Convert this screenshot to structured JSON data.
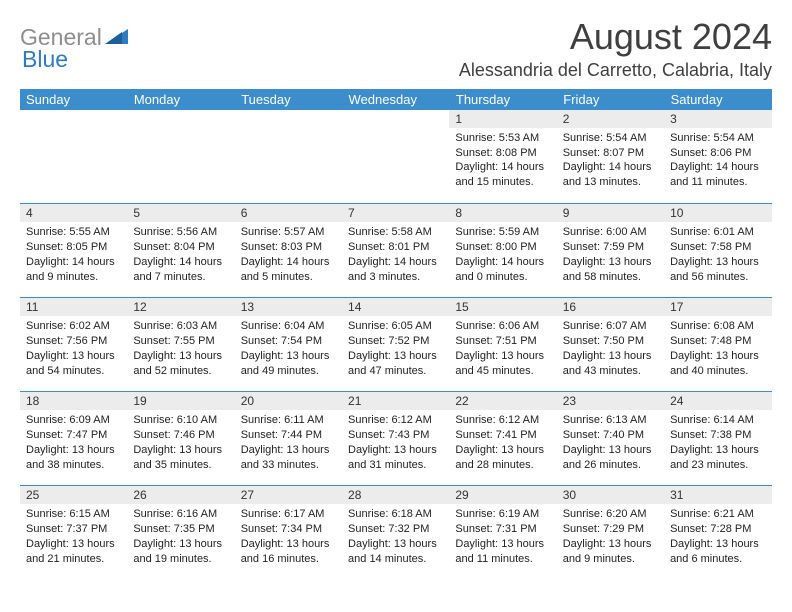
{
  "brand": {
    "general": "General",
    "blue": "Blue"
  },
  "title": "August 2024",
  "location": "Alessandria del Carretto, Calabria, Italy",
  "colors": {
    "header_bg": "#3c8dcc",
    "header_fg": "#ffffff",
    "daynum_bg": "#ececec",
    "grid_line": "#3c8dcc",
    "title_color": "#3f3f3f",
    "logo_gray": "#8e8e8e",
    "logo_blue": "#2f7bbf",
    "page_bg": "#ffffff"
  },
  "day_headers": [
    "Sunday",
    "Monday",
    "Tuesday",
    "Wednesday",
    "Thursday",
    "Friday",
    "Saturday"
  ],
  "weeks": [
    [
      {
        "n": "",
        "sunrise": "",
        "sunset": "",
        "daylight": ""
      },
      {
        "n": "",
        "sunrise": "",
        "sunset": "",
        "daylight": ""
      },
      {
        "n": "",
        "sunrise": "",
        "sunset": "",
        "daylight": ""
      },
      {
        "n": "",
        "sunrise": "",
        "sunset": "",
        "daylight": ""
      },
      {
        "n": "1",
        "sunrise": "Sunrise: 5:53 AM",
        "sunset": "Sunset: 8:08 PM",
        "daylight": "Daylight: 14 hours and 15 minutes."
      },
      {
        "n": "2",
        "sunrise": "Sunrise: 5:54 AM",
        "sunset": "Sunset: 8:07 PM",
        "daylight": "Daylight: 14 hours and 13 minutes."
      },
      {
        "n": "3",
        "sunrise": "Sunrise: 5:54 AM",
        "sunset": "Sunset: 8:06 PM",
        "daylight": "Daylight: 14 hours and 11 minutes."
      }
    ],
    [
      {
        "n": "4",
        "sunrise": "Sunrise: 5:55 AM",
        "sunset": "Sunset: 8:05 PM",
        "daylight": "Daylight: 14 hours and 9 minutes."
      },
      {
        "n": "5",
        "sunrise": "Sunrise: 5:56 AM",
        "sunset": "Sunset: 8:04 PM",
        "daylight": "Daylight: 14 hours and 7 minutes."
      },
      {
        "n": "6",
        "sunrise": "Sunrise: 5:57 AM",
        "sunset": "Sunset: 8:03 PM",
        "daylight": "Daylight: 14 hours and 5 minutes."
      },
      {
        "n": "7",
        "sunrise": "Sunrise: 5:58 AM",
        "sunset": "Sunset: 8:01 PM",
        "daylight": "Daylight: 14 hours and 3 minutes."
      },
      {
        "n": "8",
        "sunrise": "Sunrise: 5:59 AM",
        "sunset": "Sunset: 8:00 PM",
        "daylight": "Daylight: 14 hours and 0 minutes."
      },
      {
        "n": "9",
        "sunrise": "Sunrise: 6:00 AM",
        "sunset": "Sunset: 7:59 PM",
        "daylight": "Daylight: 13 hours and 58 minutes."
      },
      {
        "n": "10",
        "sunrise": "Sunrise: 6:01 AM",
        "sunset": "Sunset: 7:58 PM",
        "daylight": "Daylight: 13 hours and 56 minutes."
      }
    ],
    [
      {
        "n": "11",
        "sunrise": "Sunrise: 6:02 AM",
        "sunset": "Sunset: 7:56 PM",
        "daylight": "Daylight: 13 hours and 54 minutes."
      },
      {
        "n": "12",
        "sunrise": "Sunrise: 6:03 AM",
        "sunset": "Sunset: 7:55 PM",
        "daylight": "Daylight: 13 hours and 52 minutes."
      },
      {
        "n": "13",
        "sunrise": "Sunrise: 6:04 AM",
        "sunset": "Sunset: 7:54 PM",
        "daylight": "Daylight: 13 hours and 49 minutes."
      },
      {
        "n": "14",
        "sunrise": "Sunrise: 6:05 AM",
        "sunset": "Sunset: 7:52 PM",
        "daylight": "Daylight: 13 hours and 47 minutes."
      },
      {
        "n": "15",
        "sunrise": "Sunrise: 6:06 AM",
        "sunset": "Sunset: 7:51 PM",
        "daylight": "Daylight: 13 hours and 45 minutes."
      },
      {
        "n": "16",
        "sunrise": "Sunrise: 6:07 AM",
        "sunset": "Sunset: 7:50 PM",
        "daylight": "Daylight: 13 hours and 43 minutes."
      },
      {
        "n": "17",
        "sunrise": "Sunrise: 6:08 AM",
        "sunset": "Sunset: 7:48 PM",
        "daylight": "Daylight: 13 hours and 40 minutes."
      }
    ],
    [
      {
        "n": "18",
        "sunrise": "Sunrise: 6:09 AM",
        "sunset": "Sunset: 7:47 PM",
        "daylight": "Daylight: 13 hours and 38 minutes."
      },
      {
        "n": "19",
        "sunrise": "Sunrise: 6:10 AM",
        "sunset": "Sunset: 7:46 PM",
        "daylight": "Daylight: 13 hours and 35 minutes."
      },
      {
        "n": "20",
        "sunrise": "Sunrise: 6:11 AM",
        "sunset": "Sunset: 7:44 PM",
        "daylight": "Daylight: 13 hours and 33 minutes."
      },
      {
        "n": "21",
        "sunrise": "Sunrise: 6:12 AM",
        "sunset": "Sunset: 7:43 PM",
        "daylight": "Daylight: 13 hours and 31 minutes."
      },
      {
        "n": "22",
        "sunrise": "Sunrise: 6:12 AM",
        "sunset": "Sunset: 7:41 PM",
        "daylight": "Daylight: 13 hours and 28 minutes."
      },
      {
        "n": "23",
        "sunrise": "Sunrise: 6:13 AM",
        "sunset": "Sunset: 7:40 PM",
        "daylight": "Daylight: 13 hours and 26 minutes."
      },
      {
        "n": "24",
        "sunrise": "Sunrise: 6:14 AM",
        "sunset": "Sunset: 7:38 PM",
        "daylight": "Daylight: 13 hours and 23 minutes."
      }
    ],
    [
      {
        "n": "25",
        "sunrise": "Sunrise: 6:15 AM",
        "sunset": "Sunset: 7:37 PM",
        "daylight": "Daylight: 13 hours and 21 minutes."
      },
      {
        "n": "26",
        "sunrise": "Sunrise: 6:16 AM",
        "sunset": "Sunset: 7:35 PM",
        "daylight": "Daylight: 13 hours and 19 minutes."
      },
      {
        "n": "27",
        "sunrise": "Sunrise: 6:17 AM",
        "sunset": "Sunset: 7:34 PM",
        "daylight": "Daylight: 13 hours and 16 minutes."
      },
      {
        "n": "28",
        "sunrise": "Sunrise: 6:18 AM",
        "sunset": "Sunset: 7:32 PM",
        "daylight": "Daylight: 13 hours and 14 minutes."
      },
      {
        "n": "29",
        "sunrise": "Sunrise: 6:19 AM",
        "sunset": "Sunset: 7:31 PM",
        "daylight": "Daylight: 13 hours and 11 minutes."
      },
      {
        "n": "30",
        "sunrise": "Sunrise: 6:20 AM",
        "sunset": "Sunset: 7:29 PM",
        "daylight": "Daylight: 13 hours and 9 minutes."
      },
      {
        "n": "31",
        "sunrise": "Sunrise: 6:21 AM",
        "sunset": "Sunset: 7:28 PM",
        "daylight": "Daylight: 13 hours and 6 minutes."
      }
    ]
  ]
}
